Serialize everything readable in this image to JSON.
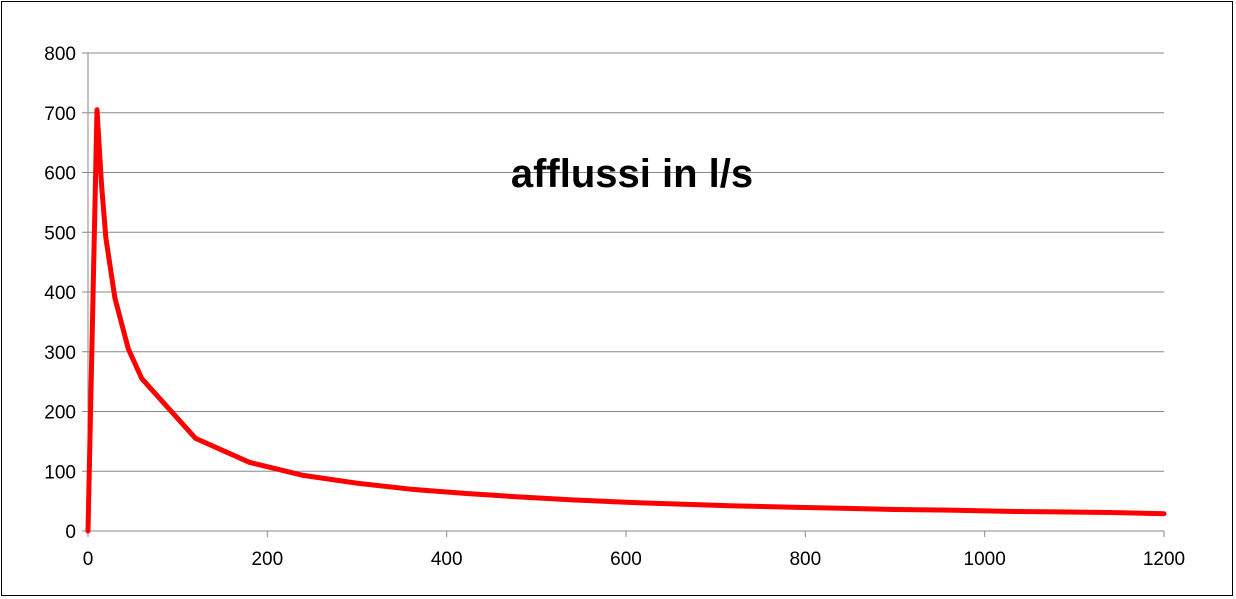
{
  "chart_data": {
    "type": "line",
    "title": "afflussi in l/s",
    "xlabel": "",
    "ylabel": "",
    "xlim": [
      0,
      1200
    ],
    "ylim": [
      0,
      800
    ],
    "x_ticks": [
      0,
      200,
      400,
      600,
      800,
      1000,
      1200
    ],
    "y_ticks": [
      0,
      100,
      200,
      300,
      400,
      500,
      600,
      700,
      800
    ],
    "grid": "horizontal",
    "legend": "none",
    "series": [
      {
        "color": "#ff0000",
        "x": [
          0,
          10,
          15,
          20,
          30,
          45,
          60,
          120,
          180,
          240,
          300,
          360,
          420,
          480,
          540,
          600,
          660,
          720,
          780,
          840,
          900,
          960,
          1020,
          1080,
          1140,
          1200
        ],
        "y": [
          0,
          705,
          580,
          490,
          390,
          305,
          255,
          155,
          115,
          93,
          80,
          70,
          63,
          57,
          52,
          48,
          45,
          42,
          40,
          38,
          36,
          35,
          33,
          32,
          31,
          29
        ]
      }
    ]
  },
  "colors": {
    "series": "#ff0000",
    "grid": "#888888",
    "axis": "#888888"
  }
}
